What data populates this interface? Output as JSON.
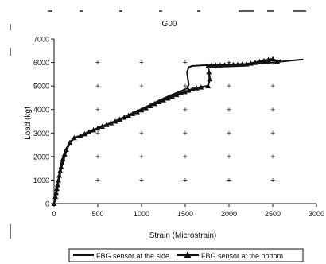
{
  "chart_data": {
    "type": "line",
    "title": "G00",
    "xlabel": "Strain (Microstrain)",
    "ylabel": "Load (kgf",
    "xlim": [
      0,
      3000
    ],
    "ylim": [
      0,
      7000
    ],
    "x_ticks": [
      "0",
      "500",
      "1000",
      "1500",
      "2000",
      "2500",
      "3000"
    ],
    "y_ticks": [
      "0",
      "1000",
      "2000",
      "3000",
      "4000",
      "5000",
      "6000",
      "7000"
    ],
    "grid": "plus markers",
    "legend_position": "bottom",
    "series": [
      {
        "name": "FBG sensor at the side",
        "marker": "none",
        "color": "#111111",
        "points": [
          [
            0,
            0
          ],
          [
            20,
            300
          ],
          [
            50,
            900
          ],
          [
            90,
            1600
          ],
          [
            130,
            2100
          ],
          [
            170,
            2500
          ],
          [
            210,
            2700
          ],
          [
            260,
            2820
          ],
          [
            350,
            2900
          ],
          [
            500,
            3200
          ],
          [
            700,
            3500
          ],
          [
            900,
            3850
          ],
          [
            1100,
            4200
          ],
          [
            1300,
            4550
          ],
          [
            1450,
            4780
          ],
          [
            1520,
            4900
          ],
          [
            1540,
            5050
          ],
          [
            1530,
            5300
          ],
          [
            1520,
            5600
          ],
          [
            1540,
            5800
          ],
          [
            1580,
            5850
          ],
          [
            1700,
            5880
          ],
          [
            1900,
            5900
          ],
          [
            2100,
            5920
          ],
          [
            2300,
            5950
          ],
          [
            2500,
            6000
          ],
          [
            2700,
            6080
          ],
          [
            2850,
            6130
          ]
        ]
      },
      {
        "name": "FBG sensor at the bottom",
        "marker": "triangle",
        "color": "#111111",
        "points": [
          [
            0,
            0
          ],
          [
            15,
            300
          ],
          [
            40,
            800
          ],
          [
            70,
            1400
          ],
          [
            100,
            1900
          ],
          [
            140,
            2300
          ],
          [
            180,
            2600
          ],
          [
            230,
            2800
          ],
          [
            300,
            2880
          ],
          [
            400,
            3050
          ],
          [
            550,
            3280
          ],
          [
            700,
            3500
          ],
          [
            850,
            3750
          ],
          [
            1000,
            3980
          ],
          [
            1150,
            4250
          ],
          [
            1300,
            4480
          ],
          [
            1450,
            4700
          ],
          [
            1580,
            4870
          ],
          [
            1680,
            4950
          ],
          [
            1760,
            5000
          ],
          [
            1780,
            5300
          ],
          [
            1770,
            5600
          ],
          [
            1760,
            5850
          ],
          [
            1800,
            5880
          ],
          [
            2000,
            5900
          ],
          [
            2200,
            5930
          ],
          [
            2300,
            6000
          ],
          [
            2400,
            6080
          ],
          [
            2500,
            6150
          ],
          [
            2550,
            6050
          ],
          [
            2600,
            6100
          ]
        ]
      }
    ]
  }
}
